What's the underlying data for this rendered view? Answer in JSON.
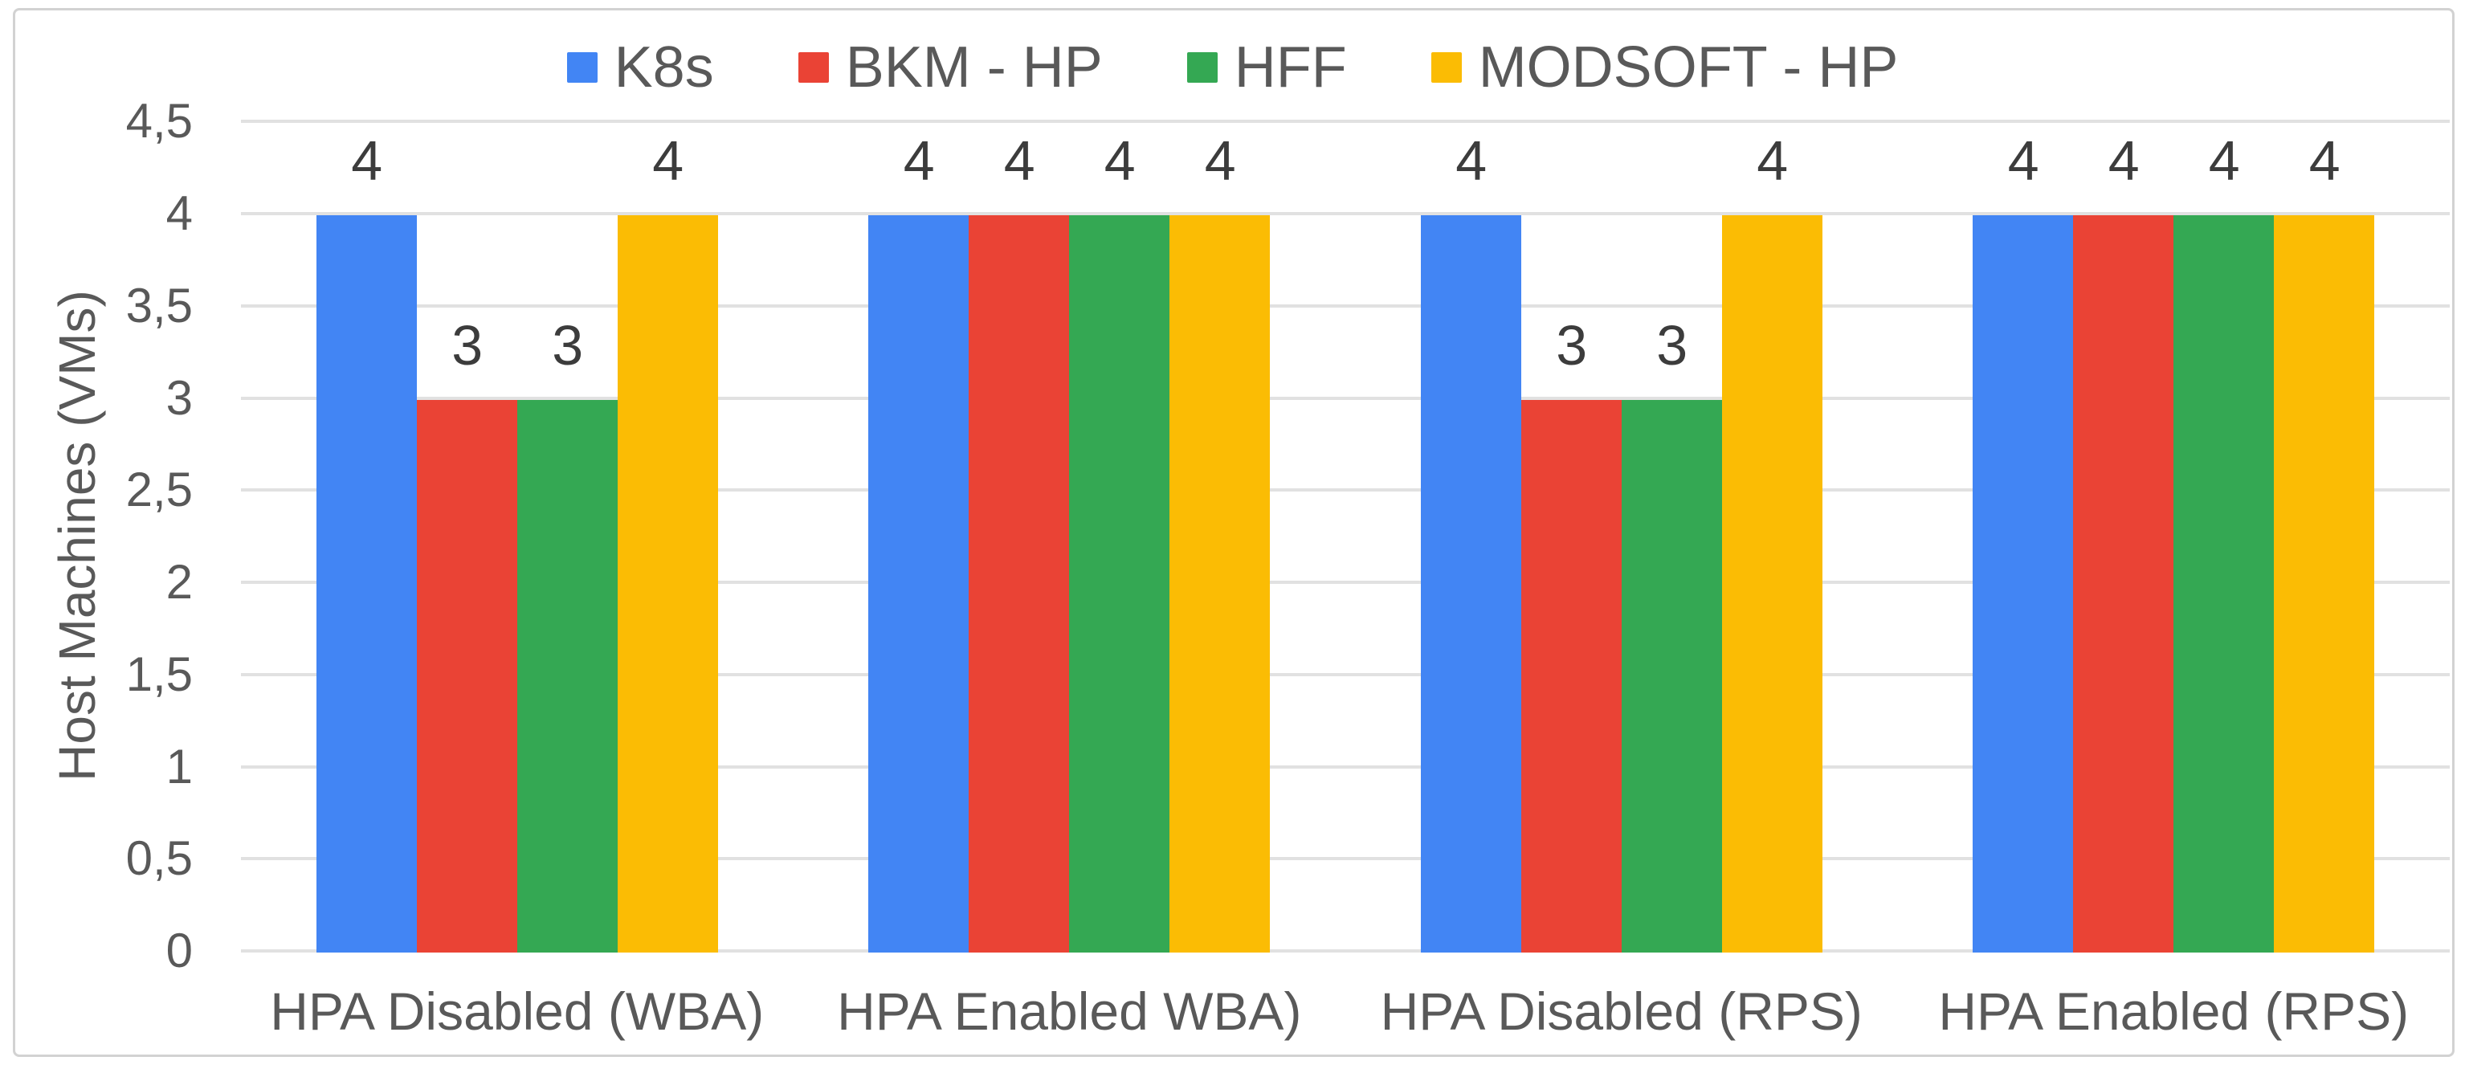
{
  "chart_data": {
    "type": "bar",
    "title": "",
    "ylabel": "Host Machines (VMs)",
    "xlabel": "",
    "ylim": [
      0,
      4.5
    ],
    "grid": true,
    "legend_position": "top",
    "decimal_separator": ",",
    "categories": [
      "HPA Disabled (WBA)",
      "HPA Enabled WBA)",
      "HPA Disabled (RPS)",
      "HPA Enabled (RPS)"
    ],
    "series": [
      {
        "name": "K8s",
        "color": "#4285F4",
        "values": [
          4,
          4,
          4,
          4
        ],
        "data_labels": [
          "4",
          "4",
          "4",
          "4"
        ]
      },
      {
        "name": "BKM - HP",
        "color": "#EA4335",
        "values": [
          3,
          4,
          3,
          4
        ],
        "data_labels": [
          "3",
          "4",
          "3",
          "4"
        ]
      },
      {
        "name": "HFF",
        "color": "#34A853",
        "values": [
          3,
          4,
          3,
          4
        ],
        "data_labels": [
          "3",
          "4",
          "3",
          "4"
        ]
      },
      {
        "name": "MODSOFT - HP",
        "color": "#FBBC04",
        "values": [
          4,
          4,
          4,
          4
        ],
        "data_labels": [
          "4",
          "4",
          "4",
          "4"
        ]
      }
    ],
    "yticks": [
      {
        "value": 0,
        "label": "0"
      },
      {
        "value": 0.5,
        "label": "0,5"
      },
      {
        "value": 1,
        "label": "1"
      },
      {
        "value": 1.5,
        "label": "1,5"
      },
      {
        "value": 2,
        "label": "2"
      },
      {
        "value": 2.5,
        "label": "2,5"
      },
      {
        "value": 3,
        "label": "3"
      },
      {
        "value": 3.5,
        "label": "3,5"
      },
      {
        "value": 4,
        "label": "4"
      },
      {
        "value": 4.5,
        "label": "4,5"
      }
    ]
  },
  "colors": {
    "axis_text": "#595959",
    "data_label_text": "#3c3c3c",
    "gridline": "#e1e1e1",
    "figure_border": "#d2d2d2",
    "background": "#ffffff"
  }
}
